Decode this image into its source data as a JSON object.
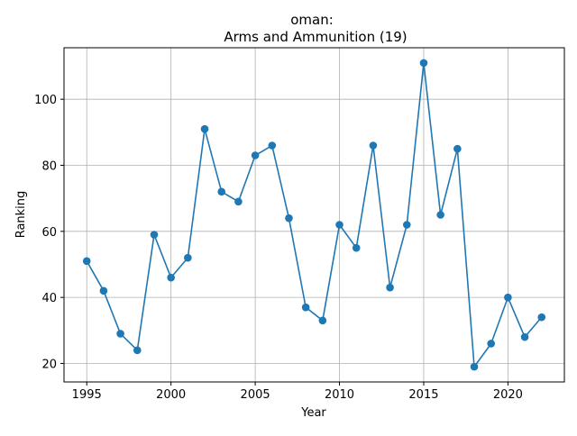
{
  "chart_data": {
    "type": "line",
    "title_line1": "oman:",
    "title_line2": "Arms and Ammunition (19)",
    "xlabel": "Year",
    "ylabel": "Ranking",
    "x": [
      1995,
      1996,
      1997,
      1998,
      1999,
      2000,
      2001,
      2002,
      2003,
      2004,
      2005,
      2006,
      2007,
      2008,
      2009,
      2010,
      2011,
      2012,
      2013,
      2014,
      2015,
      2016,
      2017,
      2018,
      2019,
      2020,
      2021,
      2022
    ],
    "series": [
      {
        "values": [
          51,
          42,
          29,
          24,
          59,
          46,
          52,
          91,
          72,
          69,
          83,
          86,
          64,
          37,
          33,
          62,
          55,
          86,
          43,
          62,
          111,
          65,
          85,
          19,
          26,
          40,
          28,
          34
        ],
        "color": "#1f77b4"
      }
    ],
    "xlim": [
      1993.65,
      1995.0
    ],
    "xticks": [
      1995,
      2000,
      2005,
      2010,
      2015,
      2020
    ],
    "xtick_labels": [
      "1995",
      "2000",
      "2005",
      "2010",
      "2015",
      "2020"
    ],
    "yticks": [
      20,
      40,
      60,
      80,
      100
    ],
    "ytick_labels": [
      "20",
      "40",
      "60",
      "80",
      "100"
    ],
    "grid": true
  }
}
